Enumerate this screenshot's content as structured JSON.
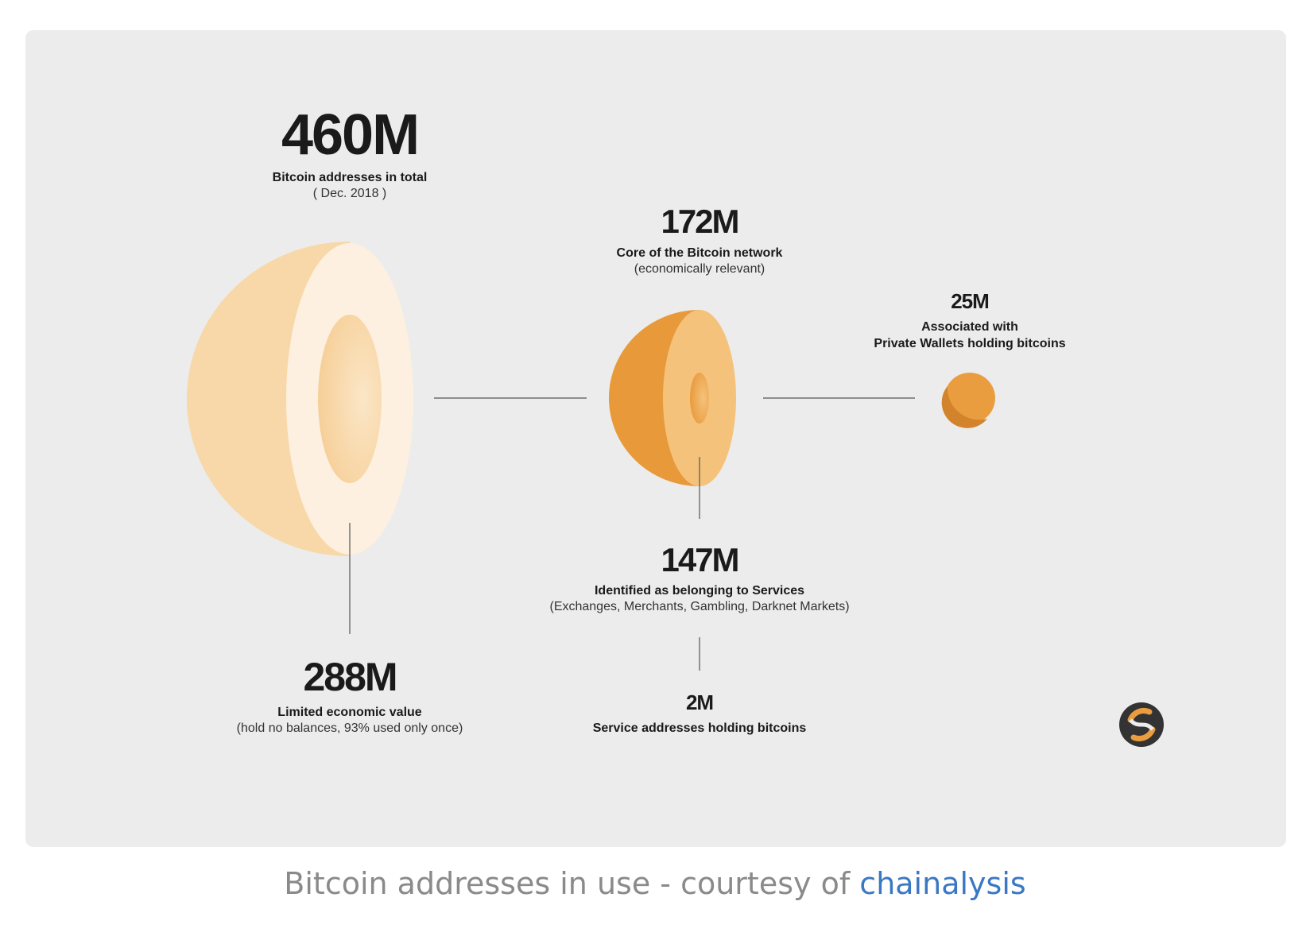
{
  "total": {
    "value": "460M",
    "label": "Bitcoin addresses in total",
    "sub": "( Dec. 2018 )"
  },
  "core": {
    "value": "172M",
    "label": "Core of the Bitcoin network",
    "sub": "(economically relevant)"
  },
  "private": {
    "value": "25M",
    "label_line1": "Associated with",
    "label_line2": "Private Wallets holding bitcoins"
  },
  "services": {
    "value": "147M",
    "label": "Identified as belonging to Services",
    "sub": "(Exchanges, Merchants, Gambling, Darknet Markets)"
  },
  "limited": {
    "value": "288M",
    "label": "Limited economic value",
    "sub": "(hold no balances, 93% used only once)"
  },
  "service_holding": {
    "value": "2M",
    "label": "Service addresses holding bitcoins"
  },
  "caption": {
    "prefix": "Bitcoin addresses in use - courtesy of ",
    "link": "chainalysis"
  },
  "colors": {
    "panel": "#ececec",
    "large_shell": "#f8d8a8",
    "large_cut": "#fdf0e0",
    "mid_shell": "#e89a3a",
    "mid_cut": "#f5c27c",
    "small_ball": "#e99d3f",
    "line": "#555555",
    "caption": "#8a8a8a",
    "link": "#3b78c4"
  },
  "logo": {
    "icon": "chainalysis-logo-icon"
  }
}
